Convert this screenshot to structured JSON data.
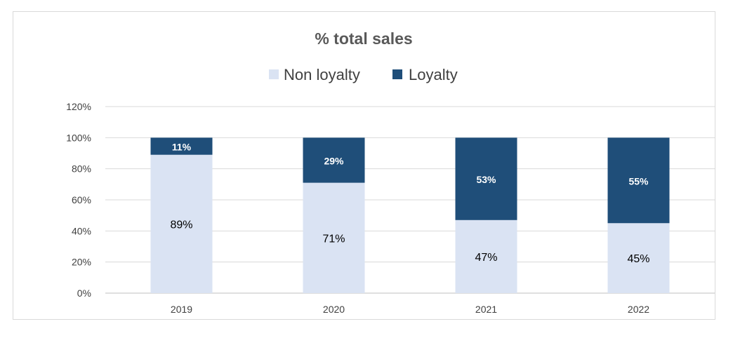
{
  "chart_data": {
    "type": "bar",
    "stacked": true,
    "title": "% total sales",
    "categories": [
      "2019",
      "2020",
      "2021",
      "2022"
    ],
    "series": [
      {
        "name": "Non loyalty",
        "values": [
          89,
          71,
          47,
          45
        ],
        "labels": [
          "89%",
          "71%",
          "47%",
          "45%"
        ],
        "color": "#dae3f3",
        "label_color": "#000000"
      },
      {
        "name": "Loyalty",
        "values": [
          11,
          29,
          53,
          55
        ],
        "labels": [
          "11%",
          "29%",
          "53%",
          "55%"
        ],
        "color": "#1f4e79",
        "label_color": "#ffffff"
      }
    ],
    "ylim": [
      0,
      120
    ],
    "yticks": [
      0,
      20,
      40,
      60,
      80,
      100,
      120
    ],
    "ytick_labels": [
      "0%",
      "20%",
      "40%",
      "60%",
      "80%",
      "100%",
      "120%"
    ],
    "xlabel": "",
    "ylabel": "",
    "grid": true,
    "legend": "top",
    "colors": {
      "gridline": "#d9d9d9",
      "title": "#595959",
      "tick_label": "#404040",
      "legend_text": "#404040"
    }
  }
}
